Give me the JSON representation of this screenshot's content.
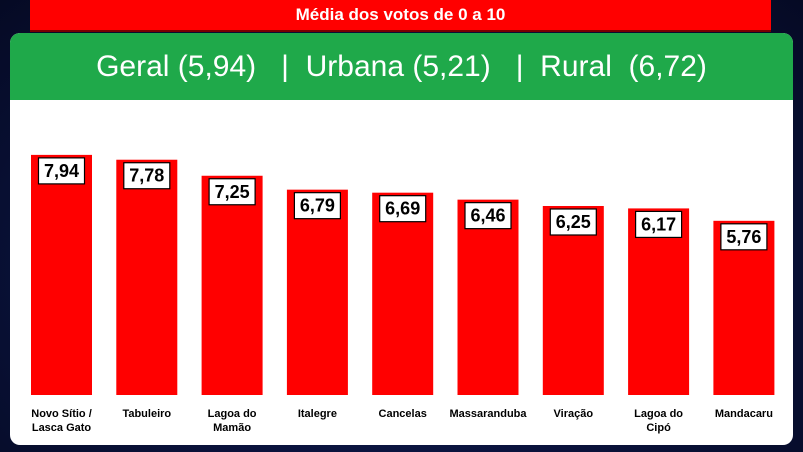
{
  "header": {
    "title": "Média dos votos de 0 a 10",
    "summary": "Geral (5,94)   |  Urbana (5,21)   |  Rural  (6,72)"
  },
  "colors": {
    "bar": "#ff0000",
    "header_banner": "#ff0000",
    "summary_bar": "#1fa94a"
  },
  "chart_data": {
    "type": "bar",
    "categories": [
      "Novo Sítio / Lasca Gato",
      "Tabuleiro",
      "Lagoa do Mamão",
      "Italegre",
      "Cancelas",
      "Massaranduba",
      "Viração",
      "Lagoa do Cipó",
      "Mandacaru"
    ],
    "values": [
      7.94,
      7.78,
      7.25,
      6.79,
      6.69,
      6.46,
      6.25,
      6.17,
      5.76
    ],
    "value_labels": [
      "7,94",
      "7,78",
      "7,25",
      "6,79",
      "6,69",
      "6,46",
      "6,25",
      "6,17",
      "5,76"
    ],
    "title": "Média dos votos de 0 a 10",
    "xlabel": "",
    "ylabel": "",
    "ylim": [
      0,
      10
    ],
    "grid": false,
    "legend": "none"
  }
}
